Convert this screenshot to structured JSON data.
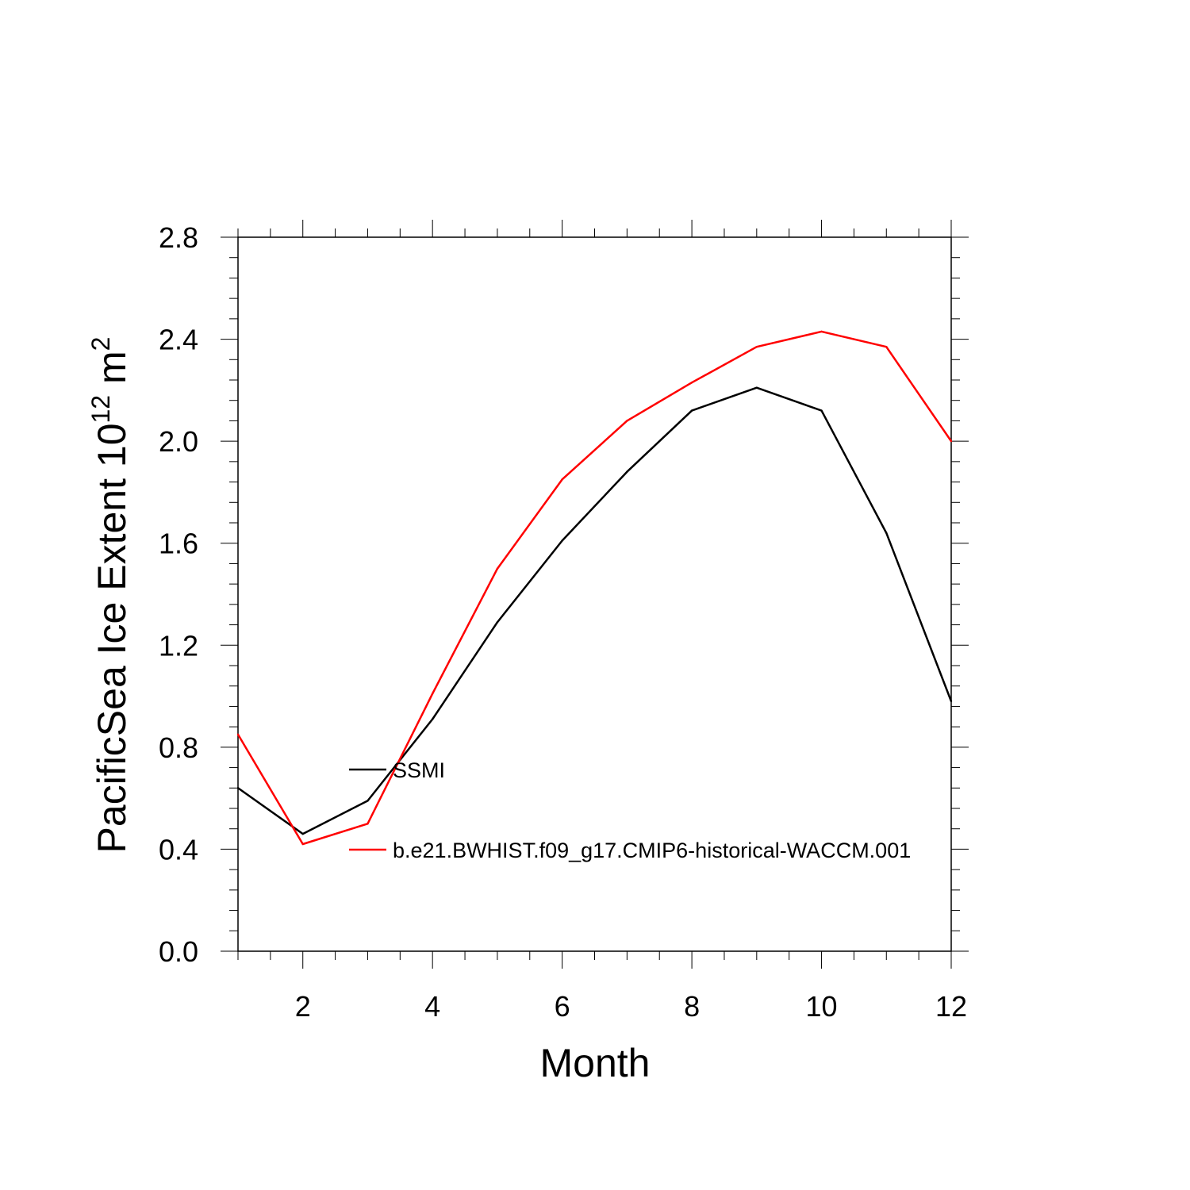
{
  "chart_data": {
    "type": "line",
    "title": "",
    "xlabel": "Month",
    "ylabel_main": "PacificSea Ice Extent 10",
    "ylabel_sup": "12",
    "ylabel_unit": " m",
    "ylabel_unit_sup": "2",
    "xlim": [
      1,
      12
    ],
    "ylim": [
      0.0,
      2.8
    ],
    "xticks": [
      2,
      4,
      6,
      8,
      10,
      12
    ],
    "xtick_labels": [
      "2",
      "4",
      "6",
      "8",
      "10",
      "12"
    ],
    "yticks": [
      0.0,
      0.4,
      0.8,
      1.2,
      1.6,
      2.0,
      2.4,
      2.8
    ],
    "ytick_labels": [
      "0.0",
      "0.4",
      "0.8",
      "1.2",
      "1.6",
      "2.0",
      "2.4",
      "2.8"
    ],
    "grid": false,
    "legend_position": "inside-left",
    "x": [
      1,
      2,
      3,
      4,
      5,
      6,
      7,
      8,
      9,
      10,
      11,
      12
    ],
    "series": [
      {
        "name": "SSMI",
        "color": "#000000",
        "values": [
          0.64,
          0.46,
          0.59,
          0.91,
          1.29,
          1.61,
          1.88,
          2.12,
          2.21,
          2.12,
          1.64,
          0.98
        ]
      },
      {
        "name": "b.e21.BWHIST.f09_g17.CMIP6-historical-WACCM.001",
        "color": "#ff0000",
        "values": [
          0.85,
          0.42,
          0.5,
          1.01,
          1.5,
          1.85,
          2.08,
          2.23,
          2.37,
          2.43,
          2.37,
          2.0
        ]
      }
    ]
  }
}
